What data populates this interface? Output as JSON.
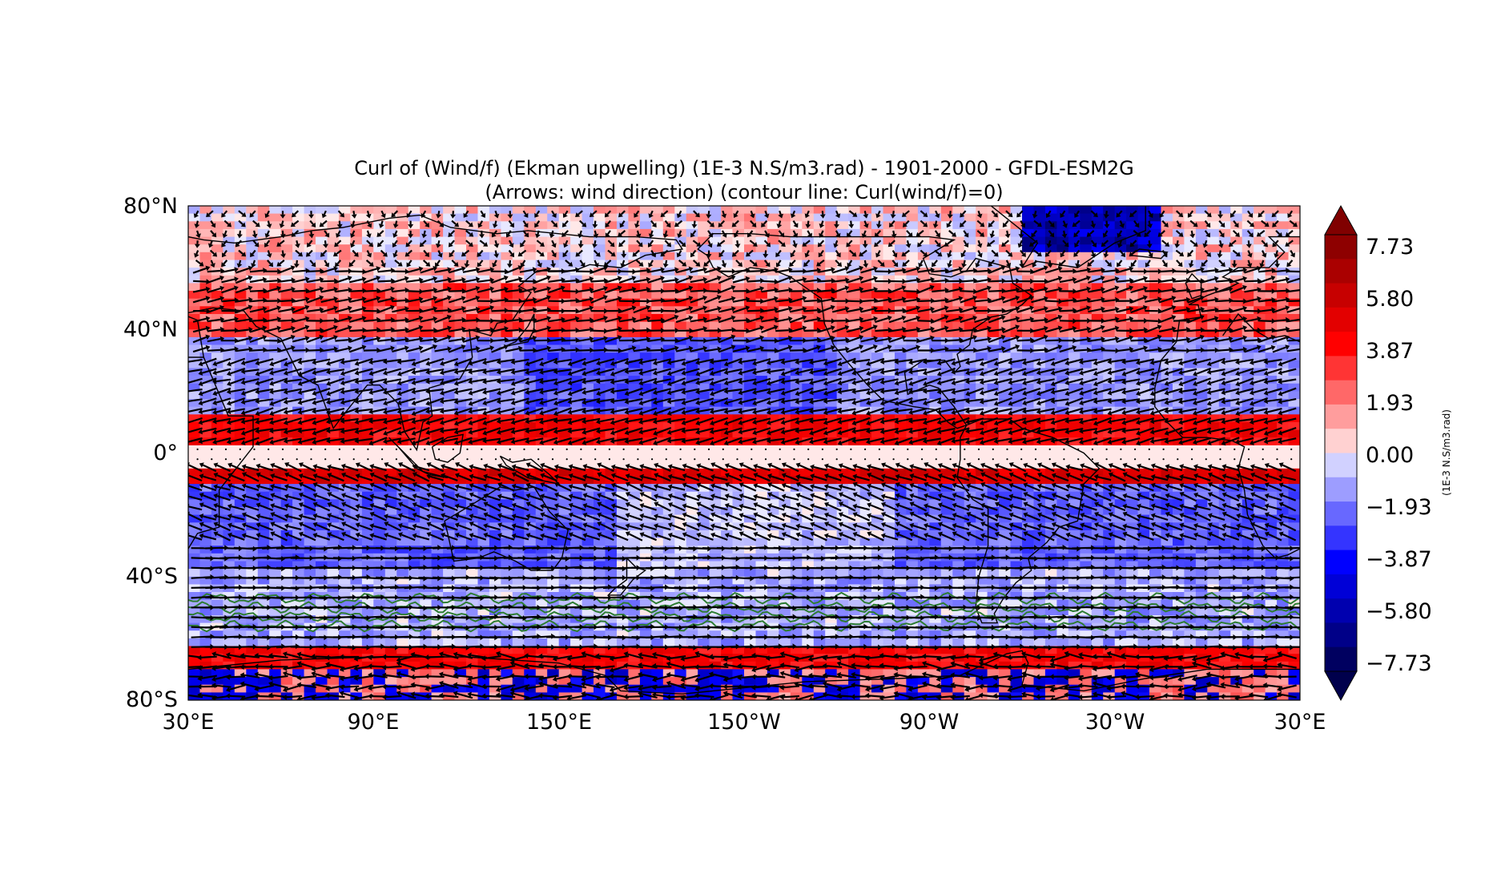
{
  "figure": {
    "title_line1": "Curl of (Wind/f) (Ekman upwelling) (1E-3 N.S/m3.rad) - 1901-2000 - GFDL-ESM2G",
    "title_line2": "(Arrows: wind direction) (contour line: Curl(wind/f)=0)"
  },
  "map": {
    "projection": "plate carree",
    "lon_range": [
      30,
      390
    ],
    "lat_range": [
      -80,
      80
    ],
    "lat_ticks": [
      "80°N",
      "40°N",
      "0°",
      "40°S",
      "80°S"
    ],
    "lon_ticks": [
      "30°E",
      "90°E",
      "150°E",
      "150°W",
      "90°W",
      "30°W",
      "30°E"
    ],
    "overlays": [
      "coastlines",
      "wind arrows",
      "zero-curl contour"
    ],
    "contour_color": "#2e7d32",
    "arrow_color": "#000000"
  },
  "colorbar": {
    "label": "(1E-3 N.S/m3.rad)",
    "colormap": "seismic",
    "range": [
      -8.7,
      8.7
    ],
    "ticks": [
      "7.73",
      "5.80",
      "3.87",
      "1.93",
      "0.00",
      "−1.93",
      "−3.87",
      "−5.80",
      "−7.73"
    ],
    "extend": "both"
  }
}
